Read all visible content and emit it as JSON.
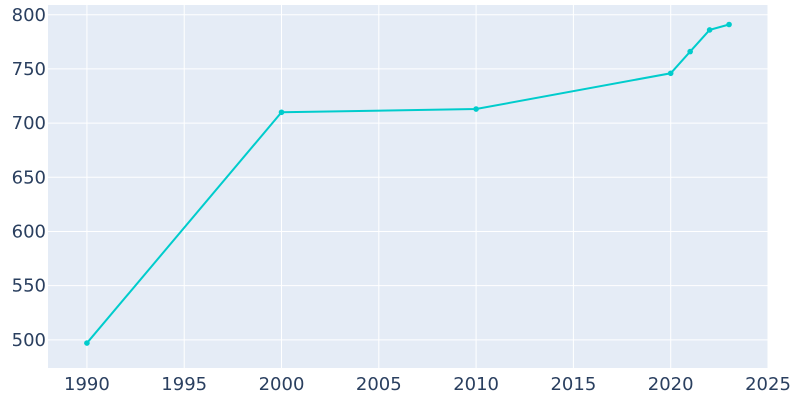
{
  "chart_data": {
    "type": "line",
    "title": "",
    "xlabel": "",
    "ylabel": "",
    "x": [
      1990,
      2000,
      2010,
      2020,
      2021,
      2022,
      2023
    ],
    "series": [
      {
        "values": [
          497,
          710,
          713,
          746,
          766,
          786,
          791
        ]
      }
    ],
    "xlim": [
      1988,
      2025
    ],
    "ylim": [
      474,
      809
    ],
    "xticks": [
      1990,
      1995,
      2000,
      2005,
      2010,
      2015,
      2020,
      2025
    ],
    "yticks": [
      500,
      550,
      600,
      650,
      700,
      750,
      800
    ],
    "grid": true,
    "legend": "none",
    "colors": {
      "line": "#00cccc",
      "plot_bg": "#e5ecf6",
      "grid": "#ffffff",
      "tick_text": "#2a3f5f"
    }
  }
}
